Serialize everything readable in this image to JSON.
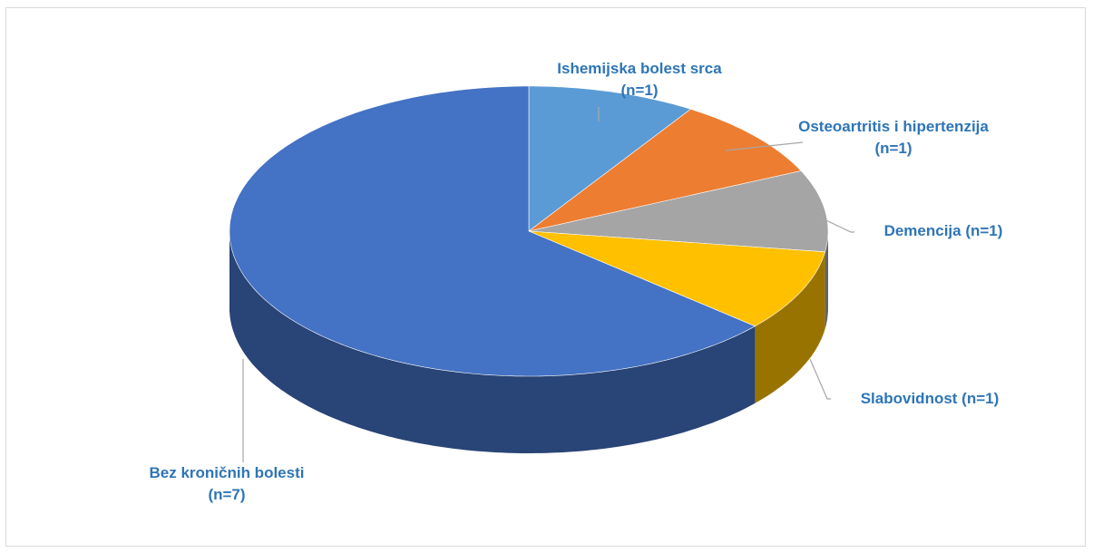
{
  "chart_data": {
    "type": "pie3d",
    "categories": [
      "Ishemijska bolest srca (n=1)",
      "Osteoartritis i hipertenzija (n=1)",
      "Demencija (n=1)",
      "Slabovidnost (n=1)",
      "Bez kroničnih bolesti (n=7)"
    ],
    "values": [
      1,
      1,
      1,
      1,
      7
    ],
    "colors": [
      "#5b9bd5",
      "#ed7d31",
      "#a5a5a5",
      "#ffc000",
      "#4472c4"
    ]
  }
}
